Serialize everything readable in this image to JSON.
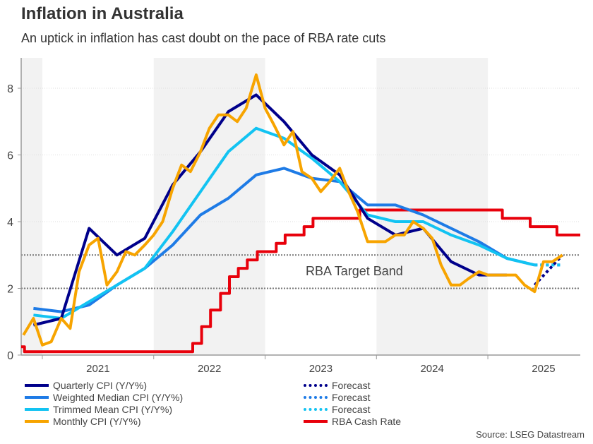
{
  "title": "Inflation in Australia",
  "subtitle": "An uptick in inflation has cast doubt on the pace of RBA rate cuts",
  "source": "Source: LSEG Datastream",
  "chart_data": {
    "type": "line",
    "title": "Inflation in Australia",
    "subtitle": "An uptick in inflation has cast doubt on the pace of RBA rate cuts",
    "xlabel": "",
    "ylabel": "",
    "xlim": [
      2020.81,
      2025.83
    ],
    "ylim": [
      0,
      8.9
    ],
    "yticks": [
      0,
      2,
      4,
      6,
      8
    ],
    "xticks": [
      2021,
      2022,
      2023,
      2024,
      2025
    ],
    "xtick_labels": [
      "2021",
      "2022",
      "2023",
      "2024",
      "2025"
    ],
    "shaded_years": [
      [
        2020.81,
        2021.0
      ],
      [
        2022.0,
        2023.0
      ],
      [
        2024.0,
        2025.0
      ]
    ],
    "target_band": {
      "low": 2,
      "high": 3,
      "label": "RBA Target Band"
    },
    "grid": true,
    "legend_position": "bottom",
    "series": [
      {
        "name": "Quarterly CPI (Y/Y%)",
        "color": "#00008B",
        "style": "solid",
        "x": [
          2020.92,
          2021.17,
          2021.42,
          2021.67,
          2021.92,
          2022.17,
          2022.42,
          2022.67,
          2022.92,
          2023.17,
          2023.42,
          2023.67,
          2023.92,
          2024.17,
          2024.42,
          2024.67,
          2024.92,
          2025.17
        ],
        "y": [
          0.9,
          1.1,
          3.8,
          3.0,
          3.5,
          5.1,
          6.1,
          7.3,
          7.8,
          7.0,
          6.0,
          5.4,
          4.1,
          3.6,
          3.8,
          2.8,
          2.4,
          2.4
        ]
      },
      {
        "name": "Quarterly CPI Forecast",
        "legend_label": "Forecast",
        "color": "#00008B",
        "style": "dotted",
        "x": [
          2025.42,
          2025.67
        ],
        "y": [
          2.1,
          3.0
        ]
      },
      {
        "name": "Weighted Median CPI (Y/Y%)",
        "color": "#1E7BE6",
        "style": "solid",
        "x": [
          2020.92,
          2021.17,
          2021.42,
          2021.67,
          2021.92,
          2022.17,
          2022.42,
          2022.67,
          2022.92,
          2023.17,
          2023.42,
          2023.67,
          2023.92,
          2024.17,
          2024.42,
          2024.67,
          2024.92,
          2025.17,
          2025.42
        ],
        "y": [
          1.4,
          1.3,
          1.5,
          2.1,
          2.6,
          3.3,
          4.2,
          4.7,
          5.4,
          5.6,
          5.3,
          5.2,
          4.5,
          4.5,
          4.2,
          3.8,
          3.4,
          2.9,
          2.7
        ]
      },
      {
        "name": "Weighted Median Forecast",
        "legend_label": "Forecast",
        "color": "#1E7BE6",
        "style": "dotted",
        "x": [
          2025.42,
          2025.67
        ],
        "y": [
          2.7,
          2.7
        ]
      },
      {
        "name": "Trimmed Mean CPI (Y/Y%)",
        "color": "#12C3F2",
        "style": "solid",
        "x": [
          2020.92,
          2021.17,
          2021.42,
          2021.67,
          2021.92,
          2022.17,
          2022.42,
          2022.67,
          2022.92,
          2023.17,
          2023.42,
          2023.67,
          2023.92,
          2024.17,
          2024.42,
          2024.67,
          2024.92,
          2025.17,
          2025.42
        ],
        "y": [
          1.2,
          1.1,
          1.6,
          2.1,
          2.6,
          3.7,
          4.9,
          6.1,
          6.8,
          6.5,
          5.9,
          5.2,
          4.2,
          4.0,
          4.0,
          3.6,
          3.3,
          2.9,
          2.7
        ]
      },
      {
        "name": "Trimmed Mean Forecast",
        "legend_label": "Forecast",
        "color": "#12C3F2",
        "style": "dotted",
        "x": [
          2025.42,
          2025.67
        ],
        "y": [
          2.7,
          2.7
        ]
      },
      {
        "name": "Monthly CPI (Y/Y%)",
        "color": "#F7A400",
        "style": "solid",
        "x": [
          2020.83,
          2020.92,
          2021.0,
          2021.08,
          2021.17,
          2021.25,
          2021.33,
          2021.42,
          2021.5,
          2021.58,
          2021.67,
          2021.75,
          2021.83,
          2021.92,
          2022.0,
          2022.08,
          2022.17,
          2022.25,
          2022.33,
          2022.42,
          2022.5,
          2022.58,
          2022.67,
          2022.75,
          2022.83,
          2022.92,
          2023.0,
          2023.08,
          2023.17,
          2023.25,
          2023.33,
          2023.42,
          2023.5,
          2023.58,
          2023.67,
          2023.75,
          2023.83,
          2023.92,
          2024.0,
          2024.08,
          2024.17,
          2024.25,
          2024.33,
          2024.42,
          2024.5,
          2024.58,
          2024.67,
          2024.75,
          2024.83,
          2024.92,
          2025.0,
          2025.08,
          2025.17,
          2025.25,
          2025.33,
          2025.42,
          2025.5,
          2025.58,
          2025.67
        ],
        "y": [
          0.6,
          1.1,
          0.3,
          0.4,
          1.1,
          0.8,
          2.5,
          3.3,
          3.5,
          2.1,
          2.5,
          3.1,
          3.0,
          3.3,
          3.6,
          4.0,
          5.0,
          5.7,
          5.5,
          6.1,
          6.8,
          7.2,
          7.2,
          7.0,
          7.4,
          8.4,
          7.4,
          6.9,
          6.3,
          6.7,
          5.5,
          5.3,
          4.9,
          5.2,
          5.6,
          4.9,
          4.3,
          3.4,
          3.4,
          3.4,
          3.6,
          3.6,
          4.0,
          3.8,
          3.5,
          2.7,
          2.1,
          2.1,
          2.3,
          2.5,
          2.4,
          2.4,
          2.4,
          2.4,
          2.1,
          1.9,
          2.8,
          2.8,
          3.0
        ]
      },
      {
        "name": "RBA Cash Rate",
        "color": "#E8000B",
        "style": "step",
        "x": [
          2020.81,
          2020.84,
          2022.35,
          2022.43,
          2022.51,
          2022.6,
          2022.68,
          2022.76,
          2022.84,
          2022.93,
          2023.1,
          2023.18,
          2023.35,
          2023.43,
          2023.85,
          2025.13,
          2025.38,
          2025.62,
          2025.83
        ],
        "y": [
          0.25,
          0.1,
          0.35,
          0.85,
          1.35,
          1.85,
          2.35,
          2.6,
          2.85,
          3.1,
          3.35,
          3.6,
          3.85,
          4.1,
          4.35,
          4.1,
          3.85,
          3.6,
          3.6
        ]
      }
    ]
  },
  "legend": {
    "left": [
      {
        "label": "Quarterly CPI (Y/Y%)",
        "color": "#00008B",
        "style": "solid"
      },
      {
        "label": "Weighted Median CPI (Y/Y%)",
        "color": "#1E7BE6",
        "style": "solid"
      },
      {
        "label": "Trimmed Mean CPI (Y/Y%)",
        "color": "#12C3F2",
        "style": "solid"
      },
      {
        "label": "Monthly CPI (Y/Y%)",
        "color": "#F7A400",
        "style": "solid"
      }
    ],
    "right": [
      {
        "label": "Forecast",
        "color": "#00008B",
        "style": "dotted"
      },
      {
        "label": "Forecast",
        "color": "#1E7BE6",
        "style": "dotted"
      },
      {
        "label": "Forecast",
        "color": "#12C3F2",
        "style": "dotted"
      },
      {
        "label": "RBA Cash Rate",
        "color": "#E8000B",
        "style": "solid"
      }
    ]
  }
}
